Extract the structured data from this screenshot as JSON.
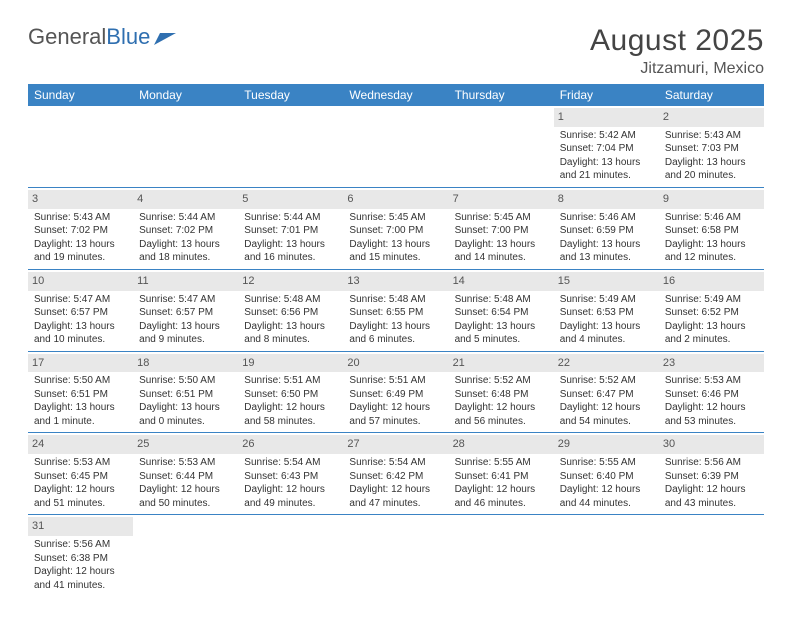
{
  "brand": {
    "part1": "General",
    "part2": "Blue"
  },
  "title": "August 2025",
  "location": "Jitzamuri, Mexico",
  "colors": {
    "header_bg": "#3a83c4",
    "header_text": "#ffffff",
    "border": "#3a83c4",
    "daynum_bg": "#e8e8e8",
    "text": "#333333",
    "title_text": "#444444"
  },
  "weekdays": [
    "Sunday",
    "Monday",
    "Tuesday",
    "Wednesday",
    "Thursday",
    "Friday",
    "Saturday"
  ],
  "weeks": [
    [
      {
        "blank": true
      },
      {
        "blank": true
      },
      {
        "blank": true
      },
      {
        "blank": true
      },
      {
        "blank": true
      },
      {
        "day": "1",
        "sunrise": "Sunrise: 5:42 AM",
        "sunset": "Sunset: 7:04 PM",
        "daylight": "Daylight: 13 hours and 21 minutes."
      },
      {
        "day": "2",
        "sunrise": "Sunrise: 5:43 AM",
        "sunset": "Sunset: 7:03 PM",
        "daylight": "Daylight: 13 hours and 20 minutes."
      }
    ],
    [
      {
        "day": "3",
        "sunrise": "Sunrise: 5:43 AM",
        "sunset": "Sunset: 7:02 PM",
        "daylight": "Daylight: 13 hours and 19 minutes."
      },
      {
        "day": "4",
        "sunrise": "Sunrise: 5:44 AM",
        "sunset": "Sunset: 7:02 PM",
        "daylight": "Daylight: 13 hours and 18 minutes."
      },
      {
        "day": "5",
        "sunrise": "Sunrise: 5:44 AM",
        "sunset": "Sunset: 7:01 PM",
        "daylight": "Daylight: 13 hours and 16 minutes."
      },
      {
        "day": "6",
        "sunrise": "Sunrise: 5:45 AM",
        "sunset": "Sunset: 7:00 PM",
        "daylight": "Daylight: 13 hours and 15 minutes."
      },
      {
        "day": "7",
        "sunrise": "Sunrise: 5:45 AM",
        "sunset": "Sunset: 7:00 PM",
        "daylight": "Daylight: 13 hours and 14 minutes."
      },
      {
        "day": "8",
        "sunrise": "Sunrise: 5:46 AM",
        "sunset": "Sunset: 6:59 PM",
        "daylight": "Daylight: 13 hours and 13 minutes."
      },
      {
        "day": "9",
        "sunrise": "Sunrise: 5:46 AM",
        "sunset": "Sunset: 6:58 PM",
        "daylight": "Daylight: 13 hours and 12 minutes."
      }
    ],
    [
      {
        "day": "10",
        "sunrise": "Sunrise: 5:47 AM",
        "sunset": "Sunset: 6:57 PM",
        "daylight": "Daylight: 13 hours and 10 minutes."
      },
      {
        "day": "11",
        "sunrise": "Sunrise: 5:47 AM",
        "sunset": "Sunset: 6:57 PM",
        "daylight": "Daylight: 13 hours and 9 minutes."
      },
      {
        "day": "12",
        "sunrise": "Sunrise: 5:48 AM",
        "sunset": "Sunset: 6:56 PM",
        "daylight": "Daylight: 13 hours and 8 minutes."
      },
      {
        "day": "13",
        "sunrise": "Sunrise: 5:48 AM",
        "sunset": "Sunset: 6:55 PM",
        "daylight": "Daylight: 13 hours and 6 minutes."
      },
      {
        "day": "14",
        "sunrise": "Sunrise: 5:48 AM",
        "sunset": "Sunset: 6:54 PM",
        "daylight": "Daylight: 13 hours and 5 minutes."
      },
      {
        "day": "15",
        "sunrise": "Sunrise: 5:49 AM",
        "sunset": "Sunset: 6:53 PM",
        "daylight": "Daylight: 13 hours and 4 minutes."
      },
      {
        "day": "16",
        "sunrise": "Sunrise: 5:49 AM",
        "sunset": "Sunset: 6:52 PM",
        "daylight": "Daylight: 13 hours and 2 minutes."
      }
    ],
    [
      {
        "day": "17",
        "sunrise": "Sunrise: 5:50 AM",
        "sunset": "Sunset: 6:51 PM",
        "daylight": "Daylight: 13 hours and 1 minute."
      },
      {
        "day": "18",
        "sunrise": "Sunrise: 5:50 AM",
        "sunset": "Sunset: 6:51 PM",
        "daylight": "Daylight: 13 hours and 0 minutes."
      },
      {
        "day": "19",
        "sunrise": "Sunrise: 5:51 AM",
        "sunset": "Sunset: 6:50 PM",
        "daylight": "Daylight: 12 hours and 58 minutes."
      },
      {
        "day": "20",
        "sunrise": "Sunrise: 5:51 AM",
        "sunset": "Sunset: 6:49 PM",
        "daylight": "Daylight: 12 hours and 57 minutes."
      },
      {
        "day": "21",
        "sunrise": "Sunrise: 5:52 AM",
        "sunset": "Sunset: 6:48 PM",
        "daylight": "Daylight: 12 hours and 56 minutes."
      },
      {
        "day": "22",
        "sunrise": "Sunrise: 5:52 AM",
        "sunset": "Sunset: 6:47 PM",
        "daylight": "Daylight: 12 hours and 54 minutes."
      },
      {
        "day": "23",
        "sunrise": "Sunrise: 5:53 AM",
        "sunset": "Sunset: 6:46 PM",
        "daylight": "Daylight: 12 hours and 53 minutes."
      }
    ],
    [
      {
        "day": "24",
        "sunrise": "Sunrise: 5:53 AM",
        "sunset": "Sunset: 6:45 PM",
        "daylight": "Daylight: 12 hours and 51 minutes."
      },
      {
        "day": "25",
        "sunrise": "Sunrise: 5:53 AM",
        "sunset": "Sunset: 6:44 PM",
        "daylight": "Daylight: 12 hours and 50 minutes."
      },
      {
        "day": "26",
        "sunrise": "Sunrise: 5:54 AM",
        "sunset": "Sunset: 6:43 PM",
        "daylight": "Daylight: 12 hours and 49 minutes."
      },
      {
        "day": "27",
        "sunrise": "Sunrise: 5:54 AM",
        "sunset": "Sunset: 6:42 PM",
        "daylight": "Daylight: 12 hours and 47 minutes."
      },
      {
        "day": "28",
        "sunrise": "Sunrise: 5:55 AM",
        "sunset": "Sunset: 6:41 PM",
        "daylight": "Daylight: 12 hours and 46 minutes."
      },
      {
        "day": "29",
        "sunrise": "Sunrise: 5:55 AM",
        "sunset": "Sunset: 6:40 PM",
        "daylight": "Daylight: 12 hours and 44 minutes."
      },
      {
        "day": "30",
        "sunrise": "Sunrise: 5:56 AM",
        "sunset": "Sunset: 6:39 PM",
        "daylight": "Daylight: 12 hours and 43 minutes."
      }
    ],
    [
      {
        "day": "31",
        "sunrise": "Sunrise: 5:56 AM",
        "sunset": "Sunset: 6:38 PM",
        "daylight": "Daylight: 12 hours and 41 minutes."
      },
      {
        "blank": true
      },
      {
        "blank": true
      },
      {
        "blank": true
      },
      {
        "blank": true
      },
      {
        "blank": true
      },
      {
        "blank": true
      }
    ]
  ]
}
